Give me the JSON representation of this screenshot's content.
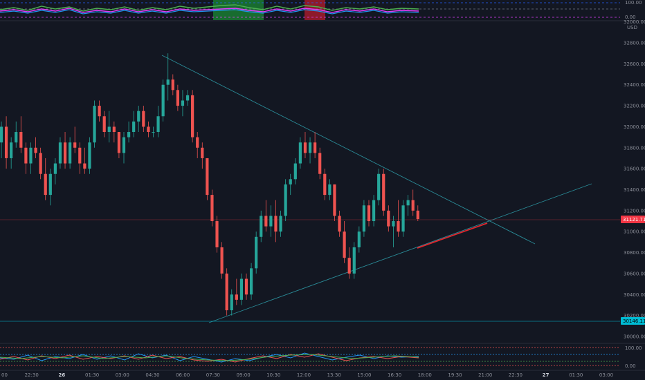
{
  "app": {
    "panel": "price-chart"
  },
  "top_indicator": {
    "axis_labels": [
      "100.00",
      "0.00"
    ],
    "colors": {
      "line_green": "#4caf50",
      "line_purple": "#e040fb",
      "line_blue": "#2196f3",
      "highlight_green": "#1b8a34",
      "highlight_red": "#b71c2e"
    }
  },
  "price_axis": {
    "currency": "USD",
    "top_partial": "32000.00",
    "labels": [
      "32800.00",
      "32600.00",
      "32400.00",
      "32200.00",
      "32000.00",
      "31800.00",
      "31600.00",
      "31400.00",
      "31200.00",
      "31000.00",
      "30800.00",
      "30600.00",
      "30400.00",
      "30200.00",
      "30000.00"
    ],
    "current_price": "31121.71",
    "support_price": "30146.11",
    "colors": {
      "current_tag": "#f23645",
      "support_tag": "#00bcd4",
      "up": "#26a69a",
      "down": "#ef5350"
    }
  },
  "bottom_indicator": {
    "axis_labels": [
      "100.00",
      "0.00"
    ]
  },
  "time_axis": {
    "labels": [
      "00",
      "22:30",
      "26",
      "01:30",
      "03:00",
      "04:30",
      "06:00",
      "07:30",
      "09:00",
      "10:30",
      "12:00",
      "13:30",
      "15:00",
      "16:30",
      "18:00",
      "19:30",
      "21:00",
      "22:30",
      "27",
      "01:30",
      "03:00"
    ],
    "bold": [
      "26",
      "27"
    ]
  },
  "chart_data": {
    "type": "candlestick",
    "symbol_currency": "USD",
    "current_price": 31121.71,
    "support_level": 30146.11,
    "y_range": [
      30000,
      32900
    ],
    "ohlc": [
      [
        31850,
        32050,
        31700,
        32000
      ],
      [
        32000,
        32100,
        31600,
        31700
      ],
      [
        31700,
        31900,
        31600,
        31850
      ],
      [
        31850,
        32050,
        31800,
        31950
      ],
      [
        31950,
        32100,
        31750,
        31800
      ],
      [
        31800,
        31850,
        31550,
        31650
      ],
      [
        31650,
        31850,
        31550,
        31800
      ],
      [
        31800,
        31900,
        31700,
        31750
      ],
      [
        31750,
        31800,
        31500,
        31550
      ],
      [
        31550,
        31700,
        31300,
        31350
      ],
      [
        31350,
        31600,
        31250,
        31550
      ],
      [
        31550,
        31700,
        31450,
        31650
      ],
      [
        31650,
        31900,
        31600,
        31850
      ],
      [
        31850,
        31950,
        31600,
        31650
      ],
      [
        31650,
        31900,
        31600,
        31850
      ],
      [
        31850,
        32000,
        31750,
        31800
      ],
      [
        31800,
        31850,
        31550,
        31650
      ],
      [
        31650,
        31800,
        31550,
        31600
      ],
      [
        31600,
        31900,
        31550,
        31850
      ],
      [
        31850,
        32250,
        31800,
        32200
      ],
      [
        32200,
        32250,
        32050,
        32100
      ],
      [
        32100,
        32150,
        31900,
        31950
      ],
      [
        31950,
        32150,
        31850,
        32000
      ],
      [
        32000,
        32050,
        31850,
        31950
      ],
      [
        31950,
        31950,
        31700,
        31750
      ],
      [
        31750,
        31950,
        31650,
        31900
      ],
      [
        31900,
        32050,
        31850,
        31950
      ],
      [
        31950,
        32150,
        31900,
        32050
      ],
      [
        32050,
        32200,
        31950,
        32150
      ],
      [
        32150,
        32200,
        31950,
        32000
      ],
      [
        32000,
        32050,
        31900,
        31950
      ],
      [
        31950,
        32000,
        31900,
        31950
      ],
      [
        31950,
        32200,
        31900,
        32100
      ],
      [
        32100,
        32450,
        32050,
        32400
      ],
      [
        32400,
        32700,
        32250,
        32450
      ],
      [
        32450,
        32500,
        32300,
        32350
      ],
      [
        32350,
        32400,
        32150,
        32200
      ],
      [
        32200,
        32350,
        32100,
        32250
      ],
      [
        32250,
        32350,
        32200,
        32300
      ],
      [
        32300,
        32350,
        31850,
        31900
      ],
      [
        31900,
        31950,
        31700,
        31800
      ],
      [
        31800,
        31850,
        31600,
        31700
      ],
      [
        31700,
        31700,
        31300,
        31350
      ],
      [
        31350,
        31400,
        31050,
        31100
      ],
      [
        31100,
        31150,
        30800,
        30850
      ],
      [
        30850,
        30900,
        30550,
        30600
      ],
      [
        30600,
        30650,
        30200,
        30250
      ],
      [
        30250,
        30450,
        30200,
        30400
      ],
      [
        30400,
        30550,
        30300,
        30350
      ],
      [
        30350,
        30600,
        30300,
        30550
      ],
      [
        30550,
        30600,
        30350,
        30400
      ],
      [
        30400,
        30700,
        30350,
        30650
      ],
      [
        30650,
        31000,
        30600,
        30950
      ],
      [
        30950,
        31200,
        30900,
        31150
      ],
      [
        31150,
        31300,
        31000,
        31050
      ],
      [
        31050,
        31250,
        30950,
        31150
      ],
      [
        31150,
        31300,
        30900,
        31000
      ],
      [
        31000,
        31200,
        30950,
        31150
      ],
      [
        31150,
        31500,
        31100,
        31450
      ],
      [
        31450,
        31550,
        31350,
        31500
      ],
      [
        31500,
        31700,
        31450,
        31650
      ],
      [
        31650,
        31900,
        31600,
        31850
      ],
      [
        31850,
        31950,
        31700,
        31750
      ],
      [
        31750,
        31900,
        31650,
        31850
      ],
      [
        31850,
        31950,
        31700,
        31750
      ],
      [
        31750,
        31800,
        31500,
        31550
      ],
      [
        31550,
        31600,
        31300,
        31350
      ],
      [
        31350,
        31500,
        31300,
        31450
      ],
      [
        31450,
        31450,
        31100,
        31150
      ],
      [
        31150,
        31200,
        30950,
        31000
      ],
      [
        31000,
        31100,
        30700,
        30750
      ],
      [
        30750,
        30850,
        30550,
        30600
      ],
      [
        30600,
        30900,
        30550,
        30850
      ],
      [
        30850,
        31050,
        30800,
        31000
      ],
      [
        31000,
        31300,
        30950,
        31250
      ],
      [
        31250,
        31300,
        31050,
        31100
      ],
      [
        31100,
        31350,
        31050,
        31300
      ],
      [
        31300,
        31600,
        31250,
        31550
      ],
      [
        31550,
        31600,
        31150,
        31200
      ],
      [
        31200,
        31250,
        31000,
        31050
      ],
      [
        31050,
        31150,
        30850,
        31100
      ],
      [
        31100,
        31300,
        30950,
        31000
      ],
      [
        31000,
        31300,
        30950,
        31250
      ],
      [
        31250,
        31350,
        31150,
        31300
      ],
      [
        31300,
        31400,
        31150,
        31200
      ],
      [
        31200,
        31250,
        31100,
        31120
      ]
    ]
  }
}
